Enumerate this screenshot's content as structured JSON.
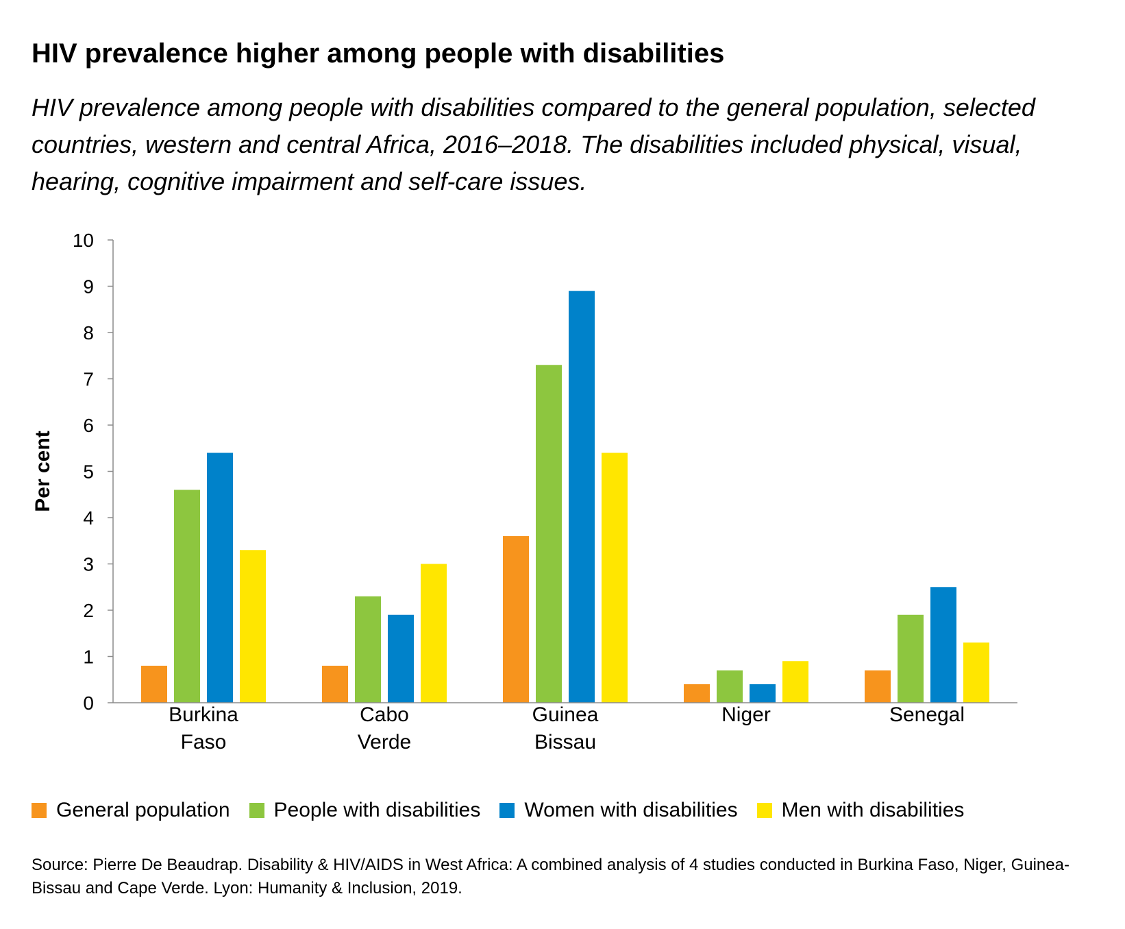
{
  "title": "HIV prevalence higher among people with disabilities",
  "subtitle": "HIV prevalence among people with disabilities compared to the general population, selected countries, western and central Africa, 2016–2018. The disabilities included physical, visual, hearing, cognitive impairment and self-care issues.",
  "source": "Source: Pierre De Beaudrap. Disability & HIV/AIDS in West Africa: A combined analysis of 4 studies conducted in Burkina Faso, Niger, Guinea-Bissau and Cape Verde. Lyon: Humanity & Inclusion, 2019.",
  "chart_data": {
    "type": "bar",
    "ylabel": "Per cent",
    "xlabel": "",
    "ylim": [
      0,
      10
    ],
    "yticks": [
      "0",
      "1",
      "2",
      "3",
      "4",
      "5",
      "6",
      "7",
      "8",
      "9",
      "10"
    ],
    "grid": false,
    "legend_position": "bottom",
    "categories": [
      [
        "Burkina",
        "Faso"
      ],
      [
        "Cabo",
        "Verde"
      ],
      [
        "Guinea",
        "Bissau"
      ],
      [
        "Niger"
      ],
      [
        "Senegal"
      ]
    ],
    "series": [
      {
        "name": "General population",
        "color": "#F7941D",
        "values": [
          0.8,
          0.8,
          3.6,
          0.4,
          0.7
        ]
      },
      {
        "name": "People with disabilities",
        "color": "#8DC63F",
        "values": [
          4.6,
          2.3,
          7.3,
          0.7,
          1.9
        ]
      },
      {
        "name": "Women with disabilities",
        "color": "#0082CA",
        "values": [
          5.4,
          1.9,
          8.9,
          0.4,
          2.5
        ]
      },
      {
        "name": "Men with disabilities",
        "color": "#FFE600",
        "values": [
          3.3,
          3.0,
          5.4,
          0.9,
          1.3
        ]
      }
    ]
  }
}
